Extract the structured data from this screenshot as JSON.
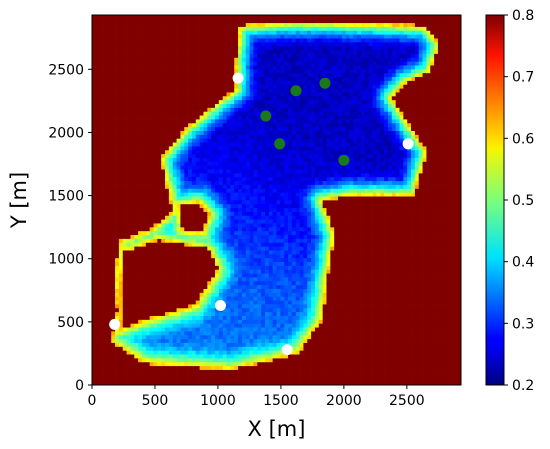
{
  "chart_data": {
    "type": "heatmap",
    "xlabel": "X [m]",
    "ylabel": "Y [m]",
    "xlim": [
      0,
      2930
    ],
    "ylim": [
      0,
      2930
    ],
    "x_ticks": [
      "0",
      "500",
      "1000",
      "1500",
      "2000",
      "2500"
    ],
    "x_tick_values": [
      0,
      500,
      1000,
      1500,
      2000,
      2500
    ],
    "y_ticks": [
      "0",
      "500",
      "1000",
      "1500",
      "2000",
      "2500"
    ],
    "y_tick_values": [
      0,
      500,
      1000,
      1500,
      2000,
      2500
    ],
    "colorbar": {
      "colormap": "jet",
      "range": [
        0.2,
        0.8
      ],
      "ticks": [
        "0.2",
        "0.3",
        "0.4",
        "0.5",
        "0.6",
        "0.7",
        "0.8"
      ],
      "tick_values": [
        0.2,
        0.3,
        0.4,
        0.5,
        0.6,
        0.7,
        0.8
      ]
    },
    "background_value": 0.8,
    "region_outline": [
      [
        150,
        350
      ],
      [
        200,
        600
      ],
      [
        180,
        900
      ],
      [
        230,
        1150
      ],
      [
        480,
        1250
      ],
      [
        640,
        1380
      ],
      [
        540,
        1800
      ],
      [
        760,
        2050
      ],
      [
        1140,
        2350
      ],
      [
        1140,
        2560
      ],
      [
        1170,
        2850
      ],
      [
        1600,
        2880
      ],
      [
        2150,
        2870
      ],
      [
        2650,
        2850
      ],
      [
        2760,
        2700
      ],
      [
        2680,
        2480
      ],
      [
        2500,
        2400
      ],
      [
        2380,
        2280
      ],
      [
        2660,
        1850
      ],
      [
        2560,
        1500
      ],
      [
        2060,
        1500
      ],
      [
        1830,
        1460
      ],
      [
        1930,
        1200
      ],
      [
        1880,
        900
      ],
      [
        1830,
        520
      ],
      [
        1640,
        250
      ],
      [
        1100,
        120
      ],
      [
        420,
        170
      ]
    ],
    "cutout_regions": [
      {
        "value": 0.8,
        "outline": [
          [
            230,
            450
          ],
          [
            420,
            520
          ],
          [
            820,
            640
          ],
          [
            1000,
            920
          ],
          [
            920,
            1080
          ],
          [
            530,
            1150
          ],
          [
            250,
            1050
          ],
          [
            230,
            800
          ]
        ]
      },
      {
        "value": 0.8,
        "outline": [
          [
            720,
            1230
          ],
          [
            880,
            1220
          ],
          [
            930,
            1350
          ],
          [
            850,
            1440
          ],
          [
            700,
            1420
          ]
        ]
      }
    ],
    "field_centers": [
      {
        "x": 1480,
        "y": 2020,
        "value": 0.2,
        "spread": 600
      },
      {
        "x": 2150,
        "y": 1750,
        "value": 0.22,
        "spread": 500
      },
      {
        "x": 1850,
        "y": 2350,
        "value": 0.25,
        "spread": 450
      },
      {
        "x": 1400,
        "y": 1300,
        "value": 0.32,
        "spread": 700
      },
      {
        "x": 1100,
        "y": 500,
        "value": 0.35,
        "spread": 600
      }
    ],
    "edge_value": 0.62,
    "series": [
      {
        "marker_color": "#ffffff",
        "points": [
          {
            "x": 1160,
            "y": 2430
          },
          {
            "x": 2510,
            "y": 1910
          },
          {
            "x": 1020,
            "y": 630
          },
          {
            "x": 180,
            "y": 480
          },
          {
            "x": 1550,
            "y": 280
          }
        ]
      },
      {
        "marker_color": "#1a7a1a",
        "points": [
          {
            "x": 1620,
            "y": 2330
          },
          {
            "x": 1850,
            "y": 2390
          },
          {
            "x": 1380,
            "y": 2130
          },
          {
            "x": 1490,
            "y": 1910
          },
          {
            "x": 2000,
            "y": 1780
          }
        ]
      }
    ]
  }
}
